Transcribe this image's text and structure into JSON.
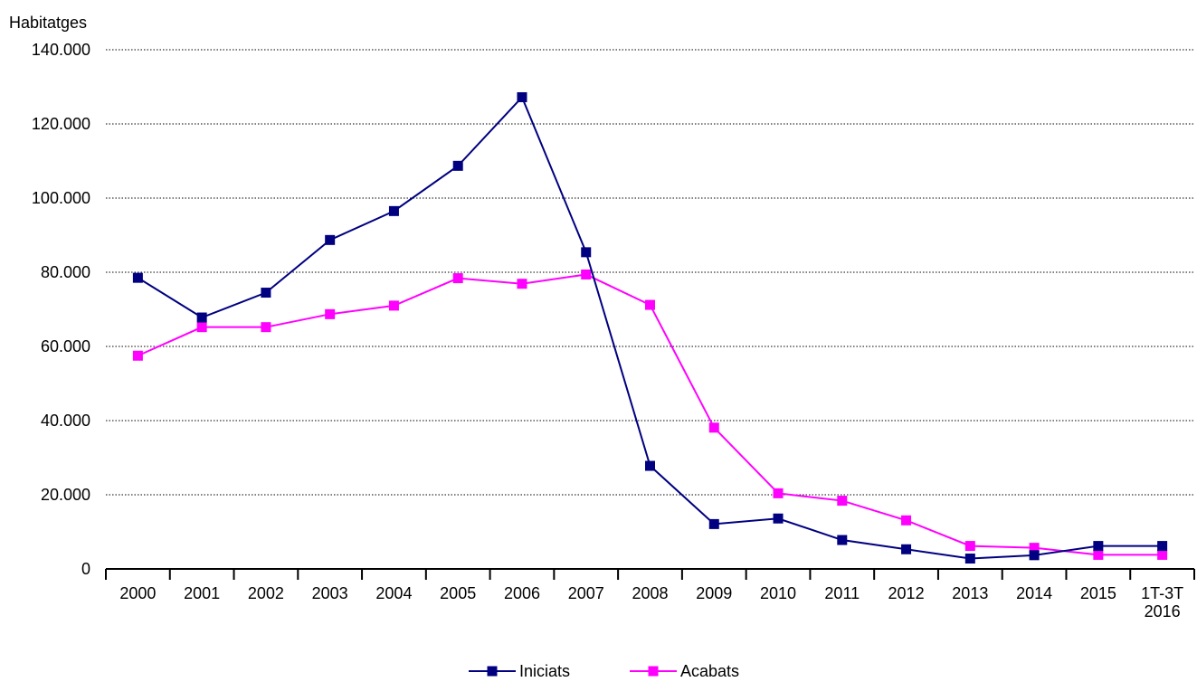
{
  "chart_data": {
    "type": "line",
    "ylabel": "Habitatges",
    "ylim": [
      0,
      140000
    ],
    "yticks": [
      "0",
      "20.000",
      "40.000",
      "60.000",
      "80.000",
      "100.000",
      "120.000",
      "140.000"
    ],
    "grid": "horizontal dotted",
    "legend_position": "bottom-center",
    "categories": [
      [
        "2000"
      ],
      [
        "2001"
      ],
      [
        "2002"
      ],
      [
        "2003"
      ],
      [
        "2004"
      ],
      [
        "2005"
      ],
      [
        "2006"
      ],
      [
        "2007"
      ],
      [
        "2008"
      ],
      [
        "2009"
      ],
      [
        "2010"
      ],
      [
        "2011"
      ],
      [
        "2012"
      ],
      [
        "2013"
      ],
      [
        "2014"
      ],
      [
        "2015"
      ],
      [
        "1T-3T",
        "2016"
      ]
    ],
    "series": [
      {
        "name": "Iniciats",
        "color": "#000080",
        "values": [
          78500,
          67800,
          74500,
          88700,
          96500,
          108700,
          127200,
          85400,
          27800,
          12100,
          13600,
          7800,
          5300,
          2800,
          3700,
          6200,
          6200
        ]
      },
      {
        "name": "Acabats",
        "color": "#FF00FF",
        "values": [
          57500,
          65200,
          65200,
          68700,
          71000,
          78400,
          76900,
          79400,
          71200,
          38100,
          20400,
          18400,
          13100,
          6200,
          5700,
          3800,
          3800
        ]
      }
    ]
  }
}
